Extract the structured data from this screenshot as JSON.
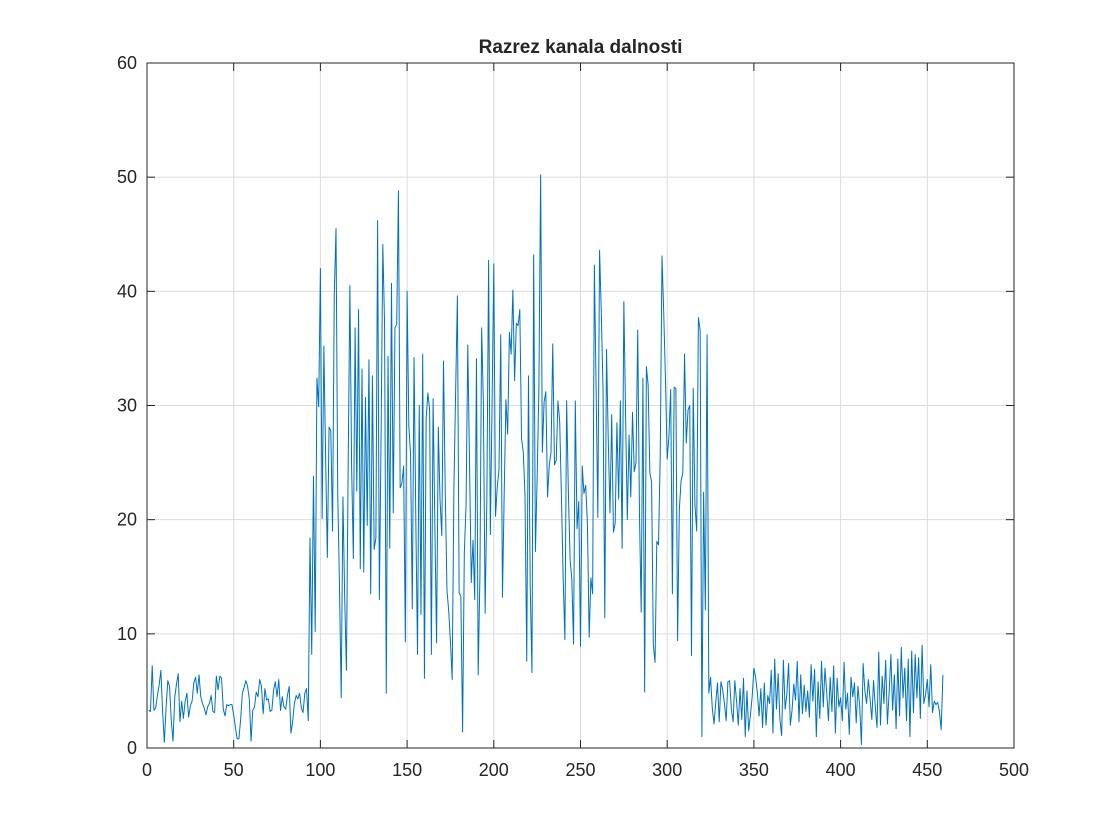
{
  "chart_data": {
    "type": "line",
    "title": "Razrez kanala dalnosti",
    "xlabel": "",
    "ylabel": "",
    "xlim": [
      0,
      500
    ],
    "ylim": [
      0,
      60
    ],
    "x_ticks": [
      0,
      50,
      100,
      150,
      200,
      250,
      300,
      350,
      400,
      450,
      500
    ],
    "y_ticks": [
      0,
      10,
      20,
      30,
      40,
      50,
      60
    ],
    "grid": true,
    "series_color": "#0072BD",
    "x_start": 1,
    "x_step": 1,
    "series": [
      {
        "values": [
          3.3,
          3.2,
          7.2,
          3.3,
          3.5,
          4.6,
          5.5,
          6.8,
          3.2,
          0.5,
          3.5,
          5.9,
          5.4,
          2.4,
          0.6,
          4.4,
          5.6,
          6.5,
          2.3,
          4.1,
          2.6,
          4.1,
          4.8,
          2.7,
          3.7,
          4.1,
          5.7,
          6.2,
          4.8,
          6.4,
          4.5,
          3.9,
          3.5,
          2.9,
          3.6,
          3.9,
          4.6,
          3.2,
          3.1,
          6.3,
          5.1,
          6.3,
          6.1,
          3.4,
          2.8,
          3.8,
          3.7,
          3.8,
          3.8,
          2.9,
          1.8,
          0.8,
          0.8,
          2.5,
          4.8,
          5.3,
          5.9,
          5.4,
          4.3,
          0.6,
          3.3,
          3.6,
          4.9,
          4.5,
          6.0,
          5.4,
          3.0,
          5.2,
          4.2,
          4.3,
          3.2,
          3.3,
          5.1,
          5.8,
          4.5,
          6.0,
          3.3,
          4.5,
          3.6,
          3.4,
          4.6,
          5.4,
          1.3,
          2.3,
          3.9,
          4.6,
          4.3,
          4.8,
          3.5,
          3.1,
          4.8,
          5.2,
          2.4,
          18.4,
          8.2,
          23.8,
          10.2,
          32.4,
          29.9,
          42.0,
          20.1,
          35.2,
          25.6,
          16.7,
          28.1,
          27.8,
          19.0,
          39.7,
          45.5,
          22.3,
          14.3,
          4.4,
          22.0,
          13.2,
          6.8,
          24.4,
          40.5,
          24.7,
          16.6,
          36.8,
          22.5,
          38.4,
          15.7,
          33.2,
          15.4,
          30.7,
          19.5,
          34.0,
          13.5,
          32.6,
          17.4,
          18.4,
          46.2,
          13.0,
          27.3,
          44.1,
          37.2,
          4.8,
          34.3,
          17.5,
          40.7,
          20.6,
          36.8,
          37.1,
          48.8,
          22.8,
          23.2,
          24.7,
          9.3,
          40.0,
          28.2,
          25.7,
          12.2,
          34.2,
          20.3,
          8.2,
          30.0,
          11.7,
          34.5,
          6.1,
          28.9,
          31.1,
          29.6,
          8.2,
          30.6,
          19.5,
          9.2,
          28.1,
          21.7,
          18.6,
          33.9,
          22.5,
          13.8,
          12.0,
          9.3,
          6.0,
          22.8,
          31.3,
          39.6,
          13.6,
          13.3,
          1.4,
          17.1,
          21.3,
          35.3,
          25.0,
          14.5,
          18.2,
          13.0,
          34.1,
          6.4,
          15.1,
          36.8,
          30.1,
          11.8,
          21.8,
          42.7,
          18.7,
          30.1,
          42.4,
          20.3,
          22.9,
          24.4,
          36.2,
          13.2,
          22.3,
          30.5,
          27.5,
          36.4,
          34.5,
          40.1,
          32.2,
          37.2,
          37.0,
          38.4,
          27.1,
          25.9,
          22.1,
          7.6,
          32.6,
          14.2,
          6.6,
          43.2,
          17.2,
          23.7,
          31.5,
          50.2,
          25.9,
          30.3,
          31.2,
          22.0,
          24.8,
          25.9,
          35.4,
          24.8,
          25.2,
          30.4,
          28.6,
          22.0,
          14.9,
          9.5,
          30.4,
          22.5,
          16.5,
          14.8,
          9.1,
          30.4,
          19.2,
          21.6,
          8.9,
          24.7,
          22.3,
          23.0,
          19.6,
          9.7,
          14.9,
          13.5,
          42.3,
          31.5,
          20.2,
          43.6,
          38.1,
          31.3,
          11.4,
          34.9,
          27.1,
          20.6,
          29.2,
          18.9,
          19.7,
          28.5,
          21.8,
          30.4,
          17.5,
          39.1,
          29.2,
          20.0,
          27.4,
          22.0,
          29.4,
          24.2,
          25.0,
          36.6,
          20.6,
          11.9,
          32.4,
          4.9,
          33.4,
          31.8,
          24.1,
          23.3,
          9.0,
          7.5,
          18.1,
          17.8,
          25.8,
          43.1,
          38.1,
          32.3,
          25.3,
          27.3,
          31.4,
          13.5,
          31.6,
          31.5,
          9.4,
          20.9,
          23.4,
          24.1,
          34.5,
          26.7,
          29.6,
          30.0,
          8.1,
          31.5,
          21.3,
          19.0,
          37.7,
          36.6,
          1.0,
          22.4,
          12.1,
          36.2,
          4.8,
          6.2,
          3.5,
          2.1,
          4.0,
          5.7,
          2.3,
          5.8,
          5.1,
          3.9,
          2.4,
          5.8,
          5.9,
          3.4,
          2.3,
          5.9,
          4.1,
          2.0,
          5.2,
          2.5,
          6.1,
          1.0,
          5.0,
          1.5,
          2.9,
          4.5,
          7.0,
          6.2,
          4.8,
          2.8,
          5.2,
          1.8,
          5.7,
          2.0,
          4.6,
          3.9,
          6.8,
          1.3,
          7.8,
          3.4,
          6.5,
          2.5,
          1.1,
          7.7,
          3.4,
          4.7,
          7.4,
          2.0,
          3.3,
          5.6,
          4.2,
          7.6,
          2.3,
          6.4,
          3.0,
          5.5,
          3.2,
          5.0,
          2.7,
          7.3,
          4.1,
          6.9,
          1.0,
          5.8,
          2.6,
          7.6,
          3.6,
          7.0,
          4.8,
          2.4,
          6.2,
          3.2,
          7.2,
          1.3,
          6.1,
          3.6,
          4.4,
          2.4,
          7.5,
          3.4,
          4.8,
          1.2,
          6.2,
          4.5,
          5.7,
          2.2,
          5.4,
          3.7,
          0.3,
          7.4,
          5.0,
          3.9,
          6.0,
          4.3,
          2.5,
          5.9,
          3.6,
          1.8,
          8.4,
          2.0,
          6.3,
          3.9,
          7.7,
          2.1,
          4.9,
          8.2,
          3.3,
          6.4,
          1.7,
          7.8,
          2.8,
          8.8,
          4.4,
          7.0,
          2.4,
          7.8,
          1.0,
          8.5,
          3.1,
          8.2,
          4.4,
          7.9,
          2.6,
          9.0,
          3.9,
          4.7,
          6.0,
          3.6,
          7.3,
          3.1,
          4.1,
          3.8,
          4.0,
          3.2,
          1.6,
          6.4
        ]
      }
    ]
  }
}
